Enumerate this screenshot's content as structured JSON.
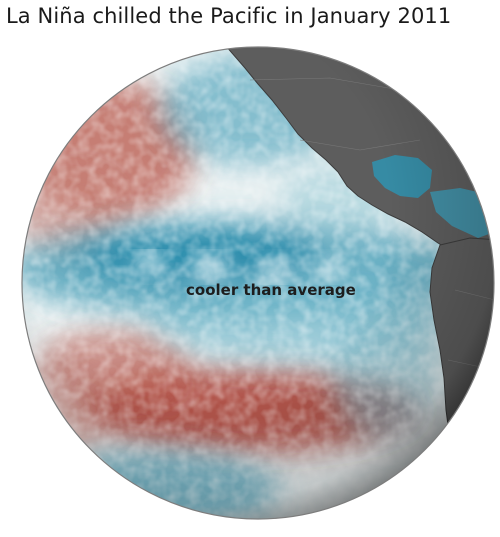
{
  "title": "La Niña chilled the Pacific in January 2011",
  "annotation": "cooler than average",
  "colors": {
    "cool_anomaly": "#1e87a8",
    "cool_light": "#cfe9ef",
    "neutral": "#eef3f4",
    "warm_anomaly": "#a83a2e",
    "warm_light": "#e2aea6",
    "land": "#5d5d5d",
    "land_edge": "#3c3c3c",
    "background": "#ffffff"
  },
  "icons": {
    "globe": "sea-surface-temperature-globe",
    "cool_region": "cool-anomaly-region",
    "warm_region": "warm-anomaly-region",
    "land": "north-america-land-mass"
  }
}
